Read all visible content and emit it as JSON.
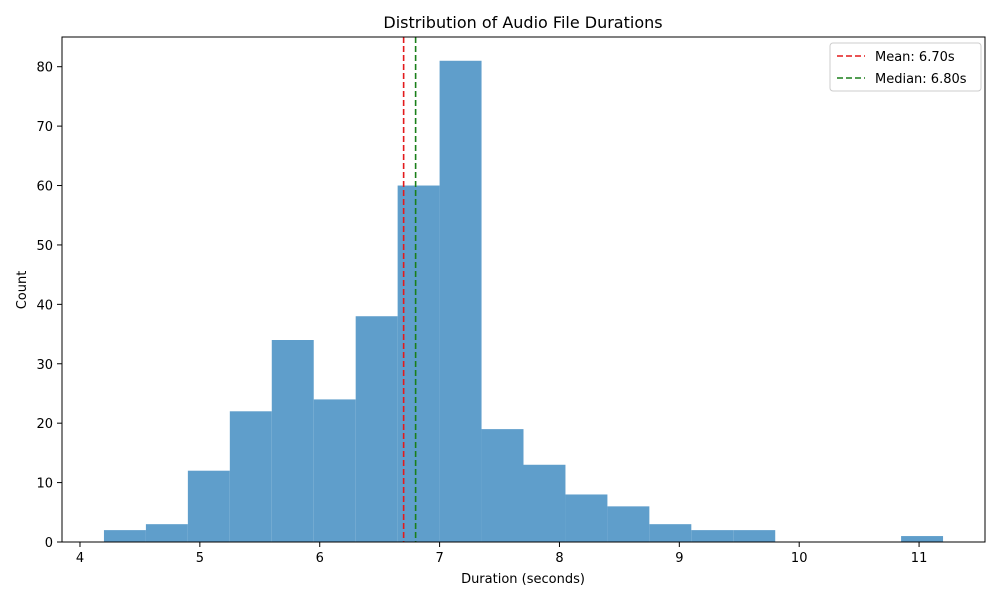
{
  "chart_data": {
    "type": "bar",
    "title": "Distribution of Audio File Durations",
    "xlabel": "Duration (seconds)",
    "ylabel": "Count",
    "xlim": [
      3.85,
      11.55
    ],
    "ylim": [
      0,
      85
    ],
    "xticks": [
      4,
      5,
      6,
      7,
      8,
      9,
      10,
      11
    ],
    "yticks": [
      0,
      10,
      20,
      30,
      40,
      50,
      60,
      70,
      80
    ],
    "bins": [
      {
        "x0": 4.2,
        "x1": 4.55,
        "count": 2
      },
      {
        "x0": 4.55,
        "x1": 4.9,
        "count": 3
      },
      {
        "x0": 4.9,
        "x1": 5.25,
        "count": 12
      },
      {
        "x0": 5.25,
        "x1": 5.6,
        "count": 22
      },
      {
        "x0": 5.6,
        "x1": 5.95,
        "count": 34
      },
      {
        "x0": 5.95,
        "x1": 6.3,
        "count": 24
      },
      {
        "x0": 6.3,
        "x1": 6.65,
        "count": 38
      },
      {
        "x0": 6.65,
        "x1": 7.0,
        "count": 60
      },
      {
        "x0": 7.0,
        "x1": 7.35,
        "count": 81
      },
      {
        "x0": 7.35,
        "x1": 7.7,
        "count": 19
      },
      {
        "x0": 7.7,
        "x1": 8.05,
        "count": 13
      },
      {
        "x0": 8.05,
        "x1": 8.4,
        "count": 8
      },
      {
        "x0": 8.4,
        "x1": 8.75,
        "count": 6
      },
      {
        "x0": 8.75,
        "x1": 9.1,
        "count": 3
      },
      {
        "x0": 9.1,
        "x1": 9.45,
        "count": 2
      },
      {
        "x0": 9.45,
        "x1": 9.8,
        "count": 2
      },
      {
        "x0": 9.8,
        "x1": 10.15,
        "count": 0
      },
      {
        "x0": 10.15,
        "x1": 10.5,
        "count": 0
      },
      {
        "x0": 10.5,
        "x1": 10.85,
        "count": 0
      },
      {
        "x0": 10.85,
        "x1": 11.2,
        "count": 1
      }
    ],
    "bar_color": "#5f9ecb",
    "reference_lines": [
      {
        "label": "Mean: 6.70s",
        "x": 6.7,
        "color": "#e31a1c",
        "style": "dashed"
      },
      {
        "label": "Median: 6.80s",
        "x": 6.8,
        "color": "#1a7f1a",
        "style": "dashed"
      }
    ],
    "legend_position": "top-right",
    "grid": false
  }
}
